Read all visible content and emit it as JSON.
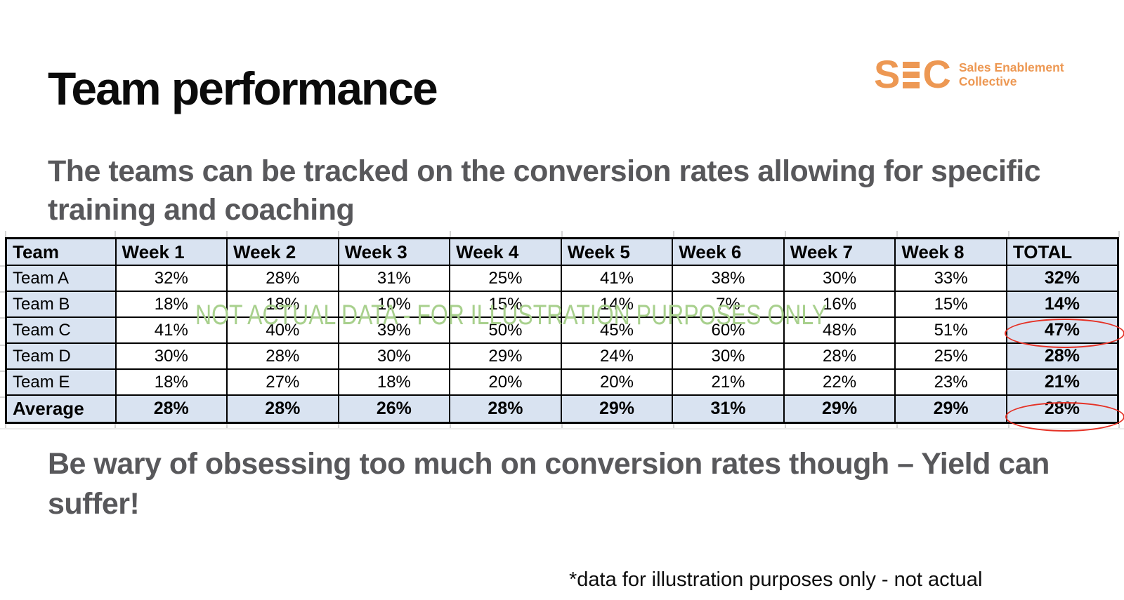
{
  "page": {
    "title": "Team performance",
    "subtitle_line1": "The teams can be tracked on the conversion rates allowing for specific",
    "subtitle_line2": "training and coaching",
    "watermark": "NOT ACTUAL DATA - FOR ILLUSTRATION PURPOSES ONLY",
    "warning_line1": "Be wary of obsessing too much on conversion rates though – Yield can",
    "warning_line2": "suffer!",
    "footnote": "*data for illustration purposes only - not actual"
  },
  "logo": {
    "monogram_s": "S",
    "monogram_c": "C",
    "name_line1": "Sales Enablement",
    "name_line2": "Collective"
  },
  "table": {
    "columns": [
      "Team",
      "Week 1",
      "Week 2",
      "Week 3",
      "Week 4",
      "Week 5",
      "Week 6",
      "Week 7",
      "Week 8",
      "TOTAL"
    ],
    "rows": [
      {
        "team": "Team A",
        "values": [
          "32%",
          "28%",
          "31%",
          "25%",
          "41%",
          "38%",
          "30%",
          "33%"
        ],
        "total": "32%"
      },
      {
        "team": "Team B",
        "values": [
          "18%",
          "18%",
          "10%",
          "15%",
          "14%",
          "7%",
          "16%",
          "15%"
        ],
        "total": "14%"
      },
      {
        "team": "Team C",
        "values": [
          "41%",
          "40%",
          "39%",
          "50%",
          "45%",
          "60%",
          "48%",
          "51%"
        ],
        "total": "47%"
      },
      {
        "team": "Team D",
        "values": [
          "30%",
          "28%",
          "30%",
          "29%",
          "24%",
          "30%",
          "28%",
          "25%"
        ],
        "total": "28%"
      },
      {
        "team": "Team E",
        "values": [
          "18%",
          "27%",
          "18%",
          "20%",
          "20%",
          "21%",
          "22%",
          "23%"
        ],
        "total": "21%"
      }
    ],
    "average": {
      "team": "Average",
      "values": [
        "28%",
        "28%",
        "26%",
        "28%",
        "29%",
        "31%",
        "29%",
        "29%"
      ],
      "total": "28%"
    }
  },
  "highlights": {
    "circled_totals": [
      "Team C",
      "Average"
    ]
  },
  "colors": {
    "accent_orange": "#ED9853",
    "watermark_green": "#A8D08D",
    "highlight_red": "#E53125",
    "table_blue": "#D9E3F1",
    "body_gray": "#58585B"
  }
}
